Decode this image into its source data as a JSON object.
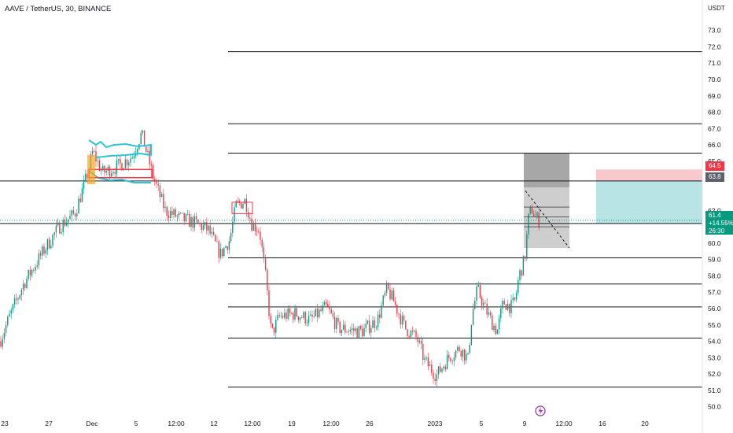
{
  "header": {
    "title": "AAVE / TetherUS, 30, BINANCE",
    "currency": "USDT"
  },
  "axis": {
    "y_labels": [
      "73.0",
      "72.0",
      "71.0",
      "70.0",
      "69.0",
      "68.0",
      "67.0",
      "66.0",
      "65.0",
      "62.0",
      "61.0",
      "60.0",
      "59.0",
      "58.0",
      "57.0",
      "56.0",
      "55.0",
      "54.0",
      "53.0",
      "52.0",
      "51.0",
      "50.0"
    ],
    "x_labels": [
      "23",
      "27",
      "Dec",
      "5",
      "12:00",
      "12",
      "12:00",
      "19",
      "12:00",
      "26",
      "2023",
      "5",
      "9",
      "12:00",
      "16",
      "20"
    ]
  },
  "tags": {
    "stop": "64.5",
    "entry": "63.8",
    "last_price": "61.4",
    "change": "+14.55%",
    "countdown": "26:30"
  },
  "colors": {
    "up": "#089981",
    "down": "#f23645",
    "stop_zone": "#f7c9cd",
    "target_zone": "#b9e4e6",
    "level_line": "#131722",
    "tag_red": "#f23645",
    "tag_gray": "#5d606b"
  },
  "icons": {
    "event": "lightning-icon"
  },
  "chart_data": {
    "type": "candlestick",
    "symbol": "AAVE / TetherUS",
    "timeframe": "30",
    "exchange": "BINANCE",
    "ylim": [
      49.6,
      73.8
    ],
    "horizontal_levels": [
      71.7,
      67.3,
      65.5,
      63.8,
      61.2,
      59.1,
      57.5,
      56.1,
      54.2,
      51.2
    ],
    "last_price": 61.4,
    "path": [
      [
        0,
        54.0
      ],
      [
        12,
        55.5
      ],
      [
        30,
        57.5
      ],
      [
        55,
        59.5
      ],
      [
        75,
        61.0
      ],
      [
        95,
        61.8
      ],
      [
        110,
        64.0
      ],
      [
        118,
        65.6
      ],
      [
        130,
        64.3
      ],
      [
        150,
        64.7
      ],
      [
        168,
        65.3
      ],
      [
        180,
        66.7
      ],
      [
        195,
        64.0
      ],
      [
        210,
        62.0
      ],
      [
        230,
        61.5
      ],
      [
        250,
        61.2
      ],
      [
        265,
        60.8
      ],
      [
        280,
        59.3
      ],
      [
        292,
        60.2
      ],
      [
        300,
        62.3
      ],
      [
        312,
        62.6
      ],
      [
        320,
        61.2
      ],
      [
        330,
        60.8
      ],
      [
        338,
        57.8
      ],
      [
        345,
        54.4
      ],
      [
        355,
        55.5
      ],
      [
        375,
        55.7
      ],
      [
        395,
        55.3
      ],
      [
        415,
        56.1
      ],
      [
        430,
        54.8
      ],
      [
        460,
        54.6
      ],
      [
        480,
        55.3
      ],
      [
        492,
        57.2
      ],
      [
        500,
        56.5
      ],
      [
        515,
        54.8
      ],
      [
        530,
        54.2
      ],
      [
        540,
        52.8
      ],
      [
        555,
        51.9
      ],
      [
        570,
        53.0
      ],
      [
        585,
        53.6
      ],
      [
        595,
        52.9
      ],
      [
        600,
        55.6
      ],
      [
        607,
        57.2
      ],
      [
        615,
        56.2
      ],
      [
        625,
        55.2
      ],
      [
        632,
        54.6
      ],
      [
        640,
        56.4
      ],
      [
        650,
        56.1
      ],
      [
        655,
        56.5
      ],
      [
        660,
        58.0
      ],
      [
        667,
        59.0
      ],
      [
        672,
        61.5
      ],
      [
        676,
        62.1
      ],
      [
        681,
        61.6
      ],
      [
        685,
        61.4
      ]
    ]
  }
}
